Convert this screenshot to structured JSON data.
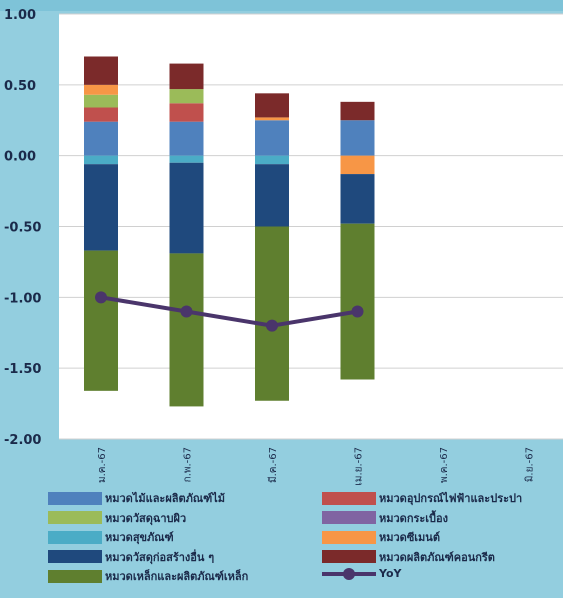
{
  "chart_data": {
    "type": "bar",
    "stacked": true,
    "categories": [
      "ม.ค.-67",
      "ก.พ.-67",
      "มี.ค.-67",
      "เม.ย.-67",
      "พ.ค.-67",
      "มิ.ย.-67"
    ],
    "ylim": [
      -2.0,
      1.0
    ],
    "y_ticks": [
      "1.00",
      "0.50",
      "0.00",
      "-0.50",
      "-1.00",
      "-1.50",
      "-2.00"
    ],
    "series": [
      {
        "name": "หมวดไม้และผลิตภัณฑ์ไม้",
        "color": "#4F81BD",
        "values": [
          0.24,
          0.24,
          0.25,
          0.25,
          null,
          null
        ]
      },
      {
        "name": "หมวดอุปกรณ์ไฟฟ้าและประปา",
        "color": "#C0504D",
        "values": [
          0.1,
          0.13,
          0.0,
          0.0,
          null,
          null
        ]
      },
      {
        "name": "หมวดวัสดุฉาบผิว",
        "color": "#9BBB59",
        "values": [
          0.09,
          0.1,
          0.0,
          0.0,
          null,
          null
        ]
      },
      {
        "name": "หมวดกระเบื้อง",
        "color": "#8064A2",
        "values": [
          0.0,
          0.0,
          0.0,
          0.0,
          null,
          null
        ]
      },
      {
        "name": "หมวดสุขภัณฑ์",
        "color": "#4BACC6",
        "values": [
          -0.06,
          -0.05,
          -0.06,
          0.0,
          null,
          null
        ]
      },
      {
        "name": "หมวดซีเมนต์",
        "color": "#F79646",
        "values": [
          0.07,
          0.0,
          0.02,
          -0.13,
          null,
          null
        ]
      },
      {
        "name": "หมวดวัสดุก่อสร้างอื่น ๆ",
        "color": "#1F497D",
        "values": [
          -0.61,
          -0.64,
          -0.44,
          -0.35,
          null,
          null
        ]
      },
      {
        "name": "หมวดผลิตภัณฑ์คอนกรีต",
        "color": "#7B2A2A",
        "values": [
          0.2,
          0.18,
          0.17,
          0.13,
          null,
          null
        ]
      },
      {
        "name": "หมวดเหล็กและผลิตภัณฑ์เหล็ก",
        "color": "#5F7F2F",
        "values": [
          -0.99,
          -1.08,
          -1.23,
          -1.1,
          null,
          null
        ]
      }
    ],
    "line_series": {
      "name": "YoY",
      "color": "#4A356B",
      "values": [
        -1.0,
        -1.1,
        -1.2,
        -1.1,
        null,
        null
      ]
    },
    "legend": {
      "position": "bottom",
      "columns": 2
    }
  }
}
